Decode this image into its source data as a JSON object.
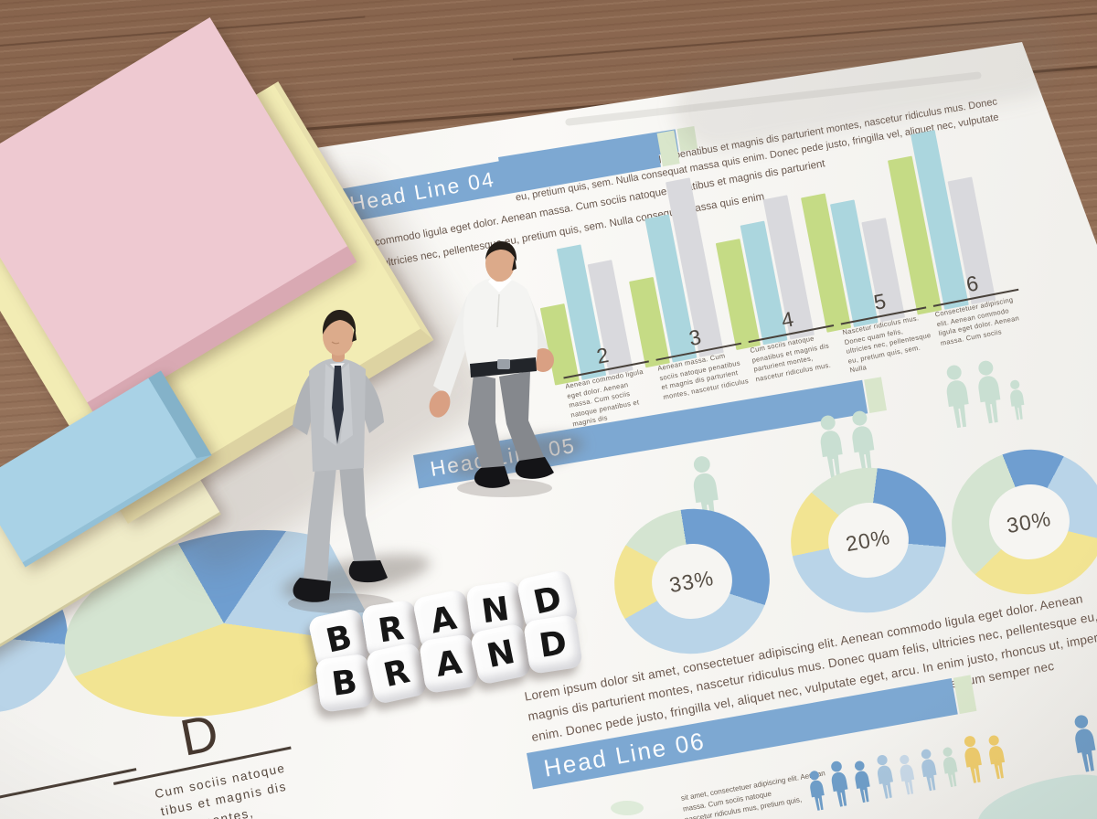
{
  "colors": {
    "paper": "#f6f5f2",
    "wood": "#97755e",
    "banner_blue": "#7da8d2",
    "banner_cap_green": "#d9e6cb",
    "banner_text": "#fbfcfd",
    "bar_green": "#c5db85",
    "bar_blue": "#abd6de",
    "bar_gray": "#d9d9dd",
    "donut_blue": "#6f9ed0",
    "donut_lightblue": "#b9d4e8",
    "donut_paleblue": "#cfdfec",
    "donut_yellow": "#f2e492",
    "donut_green": "#d4e4d1",
    "people_green": "#c9dfd2",
    "people_blue": "#6f9ec9",
    "people_lightblue": "#a9c6de",
    "people_paleblue": "#c8d9e8",
    "people_yellow": "#efcd6d",
    "ink_dark": "#4c463f",
    "ink_body": "#6a594f",
    "sticky_yellow": "#f2ecb4",
    "sticky_pink": "#eec9d1",
    "sticky_blue": "#a9d2e6",
    "dice_face": "#fbfbfb",
    "dice_letter": "#161616",
    "map_teal": "#c6e2da"
  },
  "dice": {
    "rows": [
      [
        "B",
        "R",
        "A",
        "N",
        "D"
      ],
      [
        "B",
        "R",
        "A",
        "N",
        "D"
      ]
    ]
  },
  "figurines": [
    {
      "name": "miniature-businessman-gray-suit"
    },
    {
      "name": "miniature-man-white-shirt"
    }
  ],
  "main_page": {
    "top_note": {
      "line1": "Aenean massa. Cum sociis natoque penatibus et magnis dis parturient montes, nascetur ridiculus mus. Donec",
      "line2": "eu, pretium quis, sem. Nulla consequat massa quis enim. Donec pede justo, fringilla vel, aliquet nec, vulputate"
    },
    "headline04": {
      "title": "Head Line 04",
      "intro1": "ean commodo ligula eget dolor. Aenean massa. Cum sociis natoque penatibus et magnis dis parturient",
      "intro2": "felis, ultricies nec, pellentesque eu, pretium quis, sem. Nulla consequat massa quis enim"
    },
    "bar_sections": [
      {
        "number": "2",
        "caption": "Aenean commodo ligula eget dolor. Aenean massa. Cum sociis natoque penatibus et magnis dis"
      },
      {
        "number": "3",
        "caption": "Aenean massa. Cum sociis natoque penatibus et magnis dis parturient montes, nascetur ridiculus"
      },
      {
        "number": "4",
        "caption": "Cum sociis natoque penatibus et magnis dis parturient montes, nascetur ridiculus mus."
      },
      {
        "number": "5",
        "caption": "Nascetur ridiculus mus. Donec quam felis, ultricies nec, pellentesque eu, pretium quis, sem. Nulla"
      },
      {
        "number": "6",
        "caption": "Consectetuer adipiscing elit. Aenean commodo ligula eget dolor. Aenean massa. Cum sociis"
      }
    ],
    "headline05": {
      "title": "Head Line 05"
    },
    "paragraph": {
      "line1": "Lorem ipsum dolor sit amet, consectetuer adipiscing elit. Aenean commodo ligula eget dolor. Aenean",
      "line2": "magnis dis parturient montes, nascetur ridiculus mus. Donec quam felis, ultricies nec, pellentesque eu, pretium",
      "line3": "enim. Donec pede justo, fringilla vel, aliquet nec, vulputate eget, arcu. In enim justo, rhoncus ut, imperdiet",
      "line4": "felis eu pede mollis pretium. Integer tincidunt. Cras dapibus. Vivamus elementum semper nec"
    },
    "headline06": {
      "title": "Head Line 06",
      "caption1": "sit amet, consectetuer adipiscing elit. Aenean",
      "caption2": "massa. Cum sociis natoque",
      "caption3": "nascetur ridiculus mus, pretium quis,"
    }
  },
  "left_page": {
    "letter": "D",
    "caption1": "Cum sociis natoque",
    "caption2": "tibus et magnis dis",
    "caption3": "montes,"
  },
  "people": {
    "headline05_groups": [
      {
        "adults": 1,
        "children": 0
      },
      {
        "adults": 2,
        "children": 0
      },
      {
        "adults": 2,
        "children": 1
      }
    ],
    "bottom_row_colors": [
      "blue",
      "blue",
      "blue",
      "lightblue",
      "paleblue",
      "lightblue",
      "green",
      "yellow",
      "yellow"
    ],
    "right_edge_person_color": "blue"
  },
  "chart_data": [
    {
      "type": "bar",
      "title": "Head Line 04",
      "categories": [
        "2",
        "3",
        "4",
        "5",
        "6"
      ],
      "series": [
        {
          "name": "green",
          "values": [
            44,
            49,
            61,
            77,
            88
          ]
        },
        {
          "name": "blue",
          "values": [
            75,
            82,
            68,
            70,
            100
          ]
        },
        {
          "name": "gray",
          "values": [
            63,
            100,
            80,
            57,
            70
          ]
        }
      ],
      "ylim": [
        0,
        100
      ],
      "note": "relative bar heights, no axes shown"
    },
    {
      "type": "pie",
      "variant": "donut",
      "label": "33%",
      "start": 0,
      "slices": [
        {
          "color": "blue",
          "value": 33
        },
        {
          "color": "lightblue",
          "value": 36
        },
        {
          "color": "yellow",
          "value": 17
        },
        {
          "color": "green",
          "value": 14
        }
      ]
    },
    {
      "type": "pie",
      "variant": "donut",
      "label": "20%",
      "start": 15,
      "slices": [
        {
          "color": "blue",
          "value": 25
        },
        {
          "color": "lightblue",
          "value": 45
        },
        {
          "color": "yellow",
          "value": 15
        },
        {
          "color": "green",
          "value": 15
        }
      ]
    },
    {
      "type": "pie",
      "variant": "donut",
      "label": "30%",
      "start": -12,
      "slices": [
        {
          "color": "blue",
          "value": 13
        },
        {
          "color": "lightblue",
          "value": 22
        },
        {
          "color": "yellow",
          "value": 33
        },
        {
          "color": "green",
          "value": 32
        }
      ]
    },
    {
      "type": "pie",
      "label": "left page pie",
      "start": -10,
      "slices": [
        {
          "color": "blue",
          "value": 11
        },
        {
          "color": "lightblue",
          "value": 26
        },
        {
          "color": "yellow",
          "value": 37
        },
        {
          "color": "green",
          "value": 26
        }
      ]
    },
    {
      "type": "pie",
      "label": "left page partial pie",
      "start": 0,
      "slices": [
        {
          "color": "blue",
          "value": 30
        },
        {
          "color": "lightblue",
          "value": 45
        },
        {
          "color": "paleblue",
          "value": 25
        }
      ]
    }
  ]
}
